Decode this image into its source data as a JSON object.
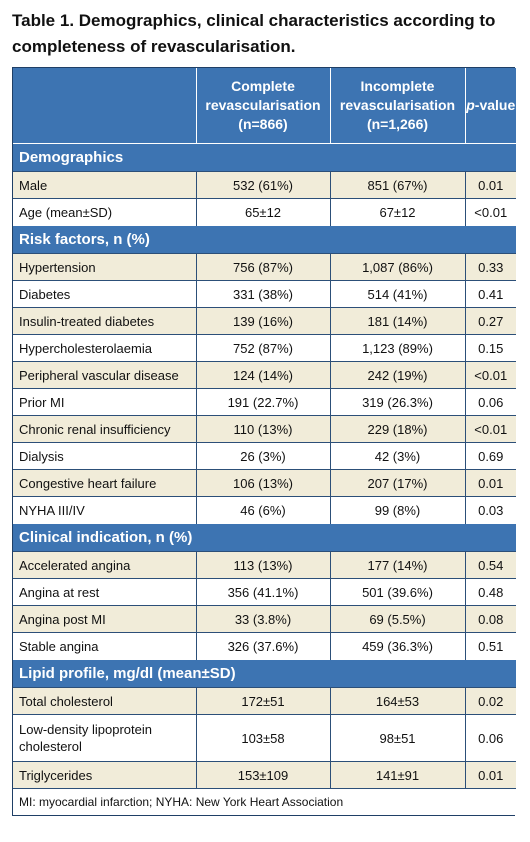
{
  "title": "Table 1. Demographics, clinical characteristics according to completeness of revascularisation.",
  "header": {
    "col1": "",
    "col2_line1": "Complete",
    "col2_line2": "revascularisation",
    "col2_line3": "(n=866)",
    "col3_line1": "Incomplete",
    "col3_line2": "revascularisation",
    "col3_line3": "(n=1,266)",
    "col4_italic": "p",
    "col4_rest": "-value"
  },
  "sections": [
    {
      "title": "Demographics",
      "rows": [
        [
          "Male",
          "532 (61%)",
          "851 (67%)",
          "0.01"
        ],
        [
          "Age (mean±SD)",
          "65±12",
          "67±12",
          "<0.01"
        ]
      ]
    },
    {
      "title": "Risk factors, n (%)",
      "rows": [
        [
          "Hypertension",
          "756 (87%)",
          "1,087 (86%)",
          "0.33"
        ],
        [
          "Diabetes",
          "331 (38%)",
          "514 (41%)",
          "0.41"
        ],
        [
          "Insulin-treated diabetes",
          "139 (16%)",
          "181 (14%)",
          "0.27"
        ],
        [
          "Hypercholesterolaemia",
          "752 (87%)",
          "1,123 (89%)",
          "0.15"
        ],
        [
          "Peripheral vascular disease",
          "124 (14%)",
          "242 (19%)",
          "<0.01"
        ],
        [
          "Prior MI",
          "191 (22.7%)",
          "319 (26.3%)",
          "0.06"
        ],
        [
          "Chronic renal insufficiency",
          "110 (13%)",
          "229 (18%)",
          "<0.01"
        ],
        [
          "Dialysis",
          "26 (3%)",
          "42 (3%)",
          "0.69"
        ],
        [
          "Congestive heart failure",
          "106 (13%)",
          "207 (17%)",
          "0.01"
        ],
        [
          "NYHA III/IV",
          "46 (6%)",
          "99 (8%)",
          "0.03"
        ]
      ]
    },
    {
      "title": "Clinical indication, n (%)",
      "rows": [
        [
          "Accelerated angina",
          "113 (13%)",
          "177 (14%)",
          "0.54"
        ],
        [
          "Angina at rest",
          "356 (41.1%)",
          "501 (39.6%)",
          "0.48"
        ],
        [
          "Angina post MI",
          "33 (3.8%)",
          "69 (5.5%)",
          "0.08"
        ],
        [
          "Stable angina",
          "326 (37.6%)",
          "459 (36.3%)",
          "0.51"
        ]
      ]
    },
    {
      "title": "Lipid profile, mg/dl (mean±SD)",
      "rows": [
        [
          "Total cholesterol",
          "172±51",
          "164±53",
          "0.02"
        ],
        [
          "Low-density lipoprotein cholesterol",
          "103±58",
          "98±51",
          "0.06"
        ],
        [
          "Triglycerides",
          "153±109",
          "141±91",
          "0.01"
        ]
      ]
    }
  ],
  "footnote": "MI: myocardial infarction; NYHA: New York Heart Association"
}
